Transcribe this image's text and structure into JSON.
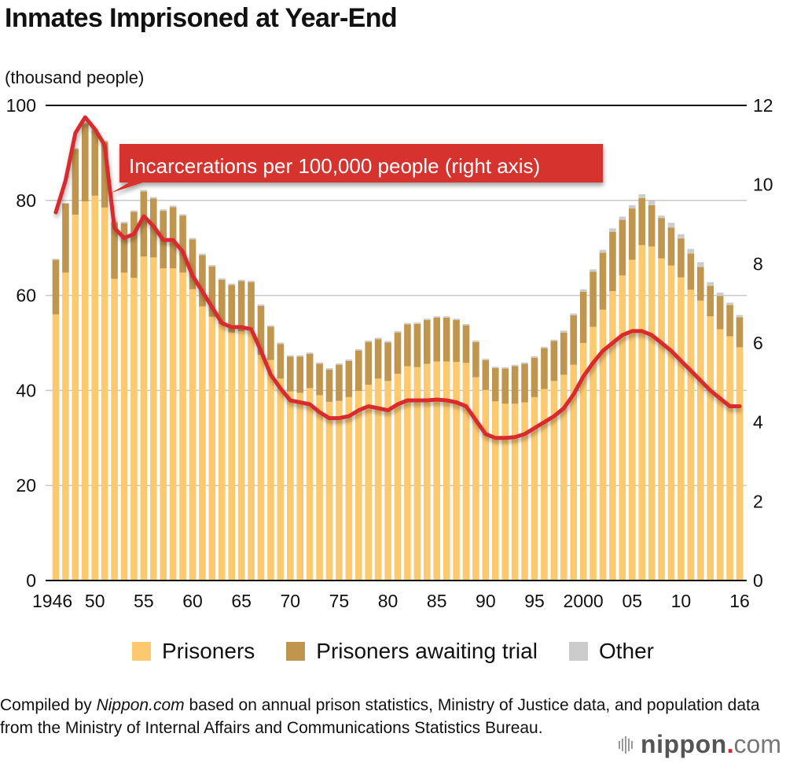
{
  "header": {
    "title": "Inmates Imprisoned at Year-End",
    "unit_label": "(thousand people)"
  },
  "colors": {
    "prisoners": "#fdc96e",
    "awaiting": "#c0964f",
    "other": "#cccccc",
    "line": "#d92b2f",
    "callout": "#d6302f"
  },
  "legend": [
    {
      "key": "prisoners",
      "label": "Prisoners"
    },
    {
      "key": "awaiting",
      "label": "Prisoners awaiting trial"
    },
    {
      "key": "other",
      "label": "Other"
    }
  ],
  "callout": "Incarcerations per 100,000 people (right axis)",
  "footer": {
    "prefix": "Compiled by ",
    "source_italic": "Nippon.com",
    "suffix": " based on annual prison statistics, Ministry of Justice data, and population data from the Ministry of Internal Affairs and Communications Statistics Bureau."
  },
  "logo": {
    "name": "nippon",
    "dot": ".",
    "tld": "com"
  },
  "chart_data": {
    "type": "bar",
    "subtype": "stacked bar with line (dual axis)",
    "title": "Inmates Imprisoned at Year-End",
    "ylabel": "(thousand people)",
    "ylim": [
      0,
      100
    ],
    "y_ticks": [
      0,
      20,
      40,
      60,
      80,
      100
    ],
    "y2lim": [
      0,
      12
    ],
    "y2_ticks": [
      0,
      2,
      4,
      6,
      8,
      10,
      12
    ],
    "grid": true,
    "legend_position": "bottom",
    "x_tick_labels": [
      {
        "year": 1946,
        "label": "1946"
      },
      {
        "year": 1950,
        "label": "50"
      },
      {
        "year": 1955,
        "label": "55"
      },
      {
        "year": 1960,
        "label": "60"
      },
      {
        "year": 1965,
        "label": "65"
      },
      {
        "year": 1970,
        "label": "70"
      },
      {
        "year": 1975,
        "label": "75"
      },
      {
        "year": 1980,
        "label": "80"
      },
      {
        "year": 1985,
        "label": "85"
      },
      {
        "year": 1990,
        "label": "90"
      },
      {
        "year": 1995,
        "label": "95"
      },
      {
        "year": 2000,
        "label": "2000"
      },
      {
        "year": 2005,
        "label": "05"
      },
      {
        "year": 2010,
        "label": "10"
      },
      {
        "year": 2016,
        "label": "16"
      }
    ],
    "x": [
      1946,
      1947,
      1948,
      1949,
      1950,
      1951,
      1952,
      1953,
      1954,
      1955,
      1956,
      1957,
      1958,
      1959,
      1960,
      1961,
      1962,
      1963,
      1964,
      1965,
      1966,
      1967,
      1968,
      1969,
      1970,
      1971,
      1972,
      1973,
      1974,
      1975,
      1976,
      1977,
      1978,
      1979,
      1980,
      1981,
      1982,
      1983,
      1984,
      1985,
      1986,
      1987,
      1988,
      1989,
      1990,
      1991,
      1992,
      1993,
      1994,
      1995,
      1996,
      1997,
      1998,
      1999,
      2000,
      2001,
      2002,
      2003,
      2004,
      2005,
      2006,
      2007,
      2008,
      2009,
      2010,
      2011,
      2012,
      2013,
      2014,
      2015,
      2016
    ],
    "series": [
      {
        "name": "Prisoners",
        "axis": "left",
        "type": "bar",
        "values": [
          56.0,
          64.8,
          77.0,
          79.8,
          81.0,
          78.5,
          63.5,
          64.8,
          63.7,
          68.2,
          68.0,
          65.7,
          65.7,
          64.8,
          61.3,
          57.7,
          55.5,
          54.0,
          52.2,
          52.5,
          53.0,
          47.5,
          46.4,
          42.5,
          39.8,
          39.5,
          40.5,
          39.0,
          37.6,
          37.8,
          38.6,
          39.9,
          41.2,
          42.5,
          42.0,
          43.5,
          45.1,
          44.9,
          45.6,
          46.1,
          46.1,
          46.0,
          45.8,
          42.8,
          40.1,
          37.7,
          37.2,
          37.2,
          37.5,
          38.6,
          40.3,
          42.0,
          43.3,
          45.4,
          50.0,
          53.4,
          57.0,
          60.9,
          64.2,
          67.5,
          70.6,
          70.3,
          67.8,
          66.3,
          63.8,
          61.2,
          58.9,
          55.6,
          52.9,
          51.4,
          49.1
        ]
      },
      {
        "name": "Prisoners awaiting trial",
        "axis": "left",
        "type": "bar",
        "values": [
          11.5,
          14.5,
          13.8,
          16.3,
          13.8,
          13.8,
          11.8,
          10.4,
          13.9,
          13.7,
          12.4,
          12.1,
          12.9,
          12.0,
          10.5,
          10.8,
          10.6,
          9.3,
          10.0,
          10.5,
          9.8,
          10.3,
          7.0,
          7.3,
          7.3,
          7.6,
          7.2,
          6.6,
          6.8,
          7.6,
          7.6,
          8.5,
          9.0,
          8.3,
          8.1,
          8.7,
          8.8,
          9.1,
          9.2,
          9.2,
          9.2,
          8.8,
          7.9,
          7.4,
          6.3,
          7.0,
          7.4,
          7.9,
          8.1,
          8.3,
          8.6,
          8.4,
          8.9,
          10.4,
          10.8,
          11.6,
          12.0,
          12.5,
          11.7,
          10.8,
          9.9,
          8.7,
          8.5,
          8.0,
          8.2,
          7.6,
          7.1,
          6.4,
          7.0,
          6.6,
          6.3
        ]
      },
      {
        "name": "Other",
        "axis": "left",
        "type": "bar",
        "values": [
          0.2,
          0.2,
          0.2,
          0.3,
          0.3,
          0.3,
          0.3,
          0.3,
          0.3,
          0.3,
          0.3,
          0.3,
          0.3,
          0.3,
          0.3,
          0.3,
          0.3,
          0.3,
          0.3,
          0.3,
          0.3,
          0.3,
          0.3,
          0.3,
          0.3,
          0.3,
          0.3,
          0.3,
          0.3,
          0.3,
          0.3,
          0.3,
          0.3,
          0.3,
          0.3,
          0.3,
          0.3,
          0.3,
          0.3,
          0.3,
          0.3,
          0.3,
          0.3,
          0.3,
          0.3,
          0.3,
          0.3,
          0.3,
          0.3,
          0.3,
          0.3,
          0.3,
          0.4,
          0.4,
          0.5,
          0.5,
          0.6,
          0.7,
          0.7,
          0.7,
          0.8,
          0.9,
          0.5,
          1.0,
          0.9,
          1.0,
          1.0,
          0.8,
          0.7,
          0.5,
          0.5
        ]
      },
      {
        "name": "Incarcerations per 100,000 people (right axis)",
        "axis": "right",
        "type": "line",
        "values": [
          9.3,
          10.1,
          11.3,
          11.7,
          11.4,
          11.0,
          8.9,
          8.65,
          8.75,
          9.2,
          8.95,
          8.6,
          8.6,
          8.3,
          7.7,
          7.3,
          6.9,
          6.5,
          6.4,
          6.4,
          6.35,
          5.8,
          5.2,
          4.85,
          4.55,
          4.5,
          4.45,
          4.25,
          4.1,
          4.1,
          4.15,
          4.3,
          4.4,
          4.35,
          4.3,
          4.45,
          4.55,
          4.55,
          4.55,
          4.57,
          4.55,
          4.5,
          4.4,
          4.05,
          3.7,
          3.6,
          3.6,
          3.62,
          3.7,
          3.85,
          4.0,
          4.15,
          4.35,
          4.7,
          5.15,
          5.5,
          5.8,
          6.0,
          6.2,
          6.3,
          6.3,
          6.2,
          6.0,
          5.8,
          5.55,
          5.3,
          5.05,
          4.8,
          4.6,
          4.4,
          4.4
        ]
      }
    ]
  }
}
